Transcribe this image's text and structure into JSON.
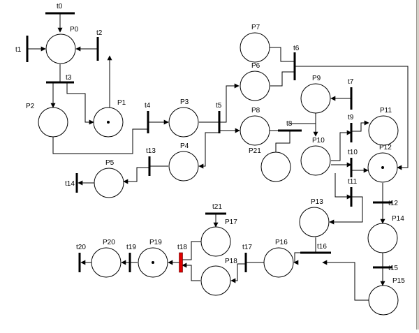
{
  "title": "",
  "colors": {
    "stroke": "#000000",
    "place_fill": "#ffffff",
    "transition": "#000000",
    "enabled_transition": "#e00000"
  },
  "places": {
    "P0": {
      "label": "P0",
      "tokens": 0
    },
    "P1": {
      "label": "P1",
      "tokens": 1
    },
    "P2": {
      "label": "P2",
      "tokens": 0
    },
    "P3": {
      "label": "P3",
      "tokens": 0
    },
    "P4": {
      "label": "P4",
      "tokens": 0
    },
    "P5": {
      "label": "P5",
      "tokens": 0
    },
    "P6": {
      "label": "P6",
      "tokens": 0
    },
    "P7": {
      "label": "P7",
      "tokens": 0
    },
    "P8": {
      "label": "P8",
      "tokens": 0
    },
    "P9": {
      "label": "P9",
      "tokens": 0
    },
    "P10": {
      "label": "P10",
      "tokens": 0
    },
    "P11": {
      "label": "P11",
      "tokens": 0
    },
    "P12": {
      "label": "P12",
      "tokens": 1
    },
    "P13": {
      "label": "P13",
      "tokens": 0
    },
    "P14": {
      "label": "P14",
      "tokens": 0
    },
    "P15": {
      "label": "P15",
      "tokens": 0
    },
    "P16": {
      "label": "P16",
      "tokens": 0
    },
    "P17": {
      "label": "P17",
      "tokens": 0
    },
    "P18": {
      "label": "P18",
      "tokens": 0
    },
    "P19": {
      "label": "P19",
      "tokens": 1
    },
    "P20": {
      "label": "P20",
      "tokens": 0
    },
    "P21": {
      "label": "P21",
      "tokens": 0
    }
  },
  "transitions": {
    "t0": {
      "label": "t0",
      "enabled": false
    },
    "t1": {
      "label": "t1",
      "enabled": false
    },
    "t2": {
      "label": "t2",
      "enabled": false
    },
    "t3": {
      "label": "t3",
      "enabled": false
    },
    "t4": {
      "label": "t4",
      "enabled": false
    },
    "t5": {
      "label": "t5",
      "enabled": false
    },
    "t6": {
      "label": "t6",
      "enabled": false
    },
    "t7": {
      "label": "t7",
      "enabled": false
    },
    "t8": {
      "label": "t8",
      "enabled": false
    },
    "t9": {
      "label": "t9",
      "enabled": false
    },
    "t10": {
      "label": "t10",
      "enabled": false
    },
    "t11": {
      "label": "t11",
      "enabled": false
    },
    "t12": {
      "label": "t12",
      "enabled": false
    },
    "t13": {
      "label": "t13",
      "enabled": false
    },
    "t14": {
      "label": "t14",
      "enabled": false
    },
    "t15": {
      "label": "t15",
      "enabled": false
    },
    "t16": {
      "label": "t16",
      "enabled": false
    },
    "t17": {
      "label": "t17",
      "enabled": false
    },
    "t18": {
      "label": "t18",
      "enabled": true
    },
    "t19": {
      "label": "t19",
      "enabled": false
    },
    "t20": {
      "label": "t20",
      "enabled": false
    },
    "t21": {
      "label": "t21",
      "enabled": false
    }
  }
}
